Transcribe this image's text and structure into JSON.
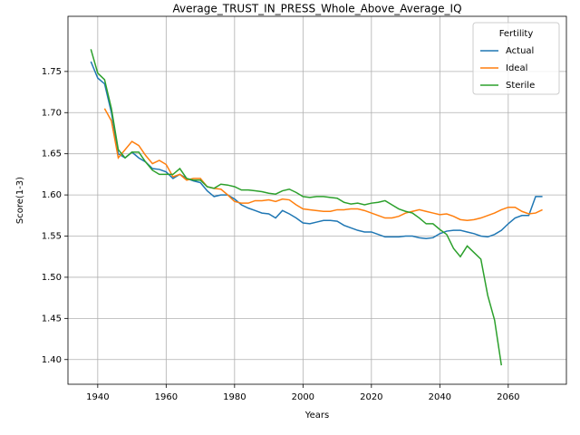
{
  "chart_data": {
    "type": "line",
    "title": "Average_TRUST_IN_PRESS_Whole_Above_Average_IQ",
    "xlabel": "Years",
    "ylabel": "Score(1-3)",
    "legend_title": "Fertility",
    "legend": "upper right",
    "grid": true,
    "xlim": [
      1931.3,
      2077
    ],
    "ylim": [
      1.37,
      1.817
    ],
    "xticks": [
      1940,
      1960,
      1980,
      2000,
      2020,
      2040,
      2060
    ],
    "yticks": [
      {
        "value": 1.4,
        "label": "1.40"
      },
      {
        "value": 1.45,
        "label": "1.45"
      },
      {
        "value": 1.5,
        "label": "1.50"
      },
      {
        "value": 1.55,
        "label": "1.55"
      },
      {
        "value": 1.6,
        "label": "1.60"
      },
      {
        "value": 1.65,
        "label": "1.65"
      },
      {
        "value": 1.7,
        "label": "1.70"
      },
      {
        "value": 1.75,
        "label": "1.75"
      }
    ],
    "x": [
      1938,
      1940,
      1942,
      1944,
      1946,
      1948,
      1950,
      1952,
      1954,
      1956,
      1958,
      1960,
      1962,
      1964,
      1966,
      1968,
      1970,
      1972,
      1974,
      1976,
      1978,
      1980,
      1982,
      1984,
      1986,
      1988,
      1990,
      1992,
      1994,
      1996,
      1998,
      2000,
      2002,
      2004,
      2006,
      2008,
      2010,
      2012,
      2014,
      2016,
      2018,
      2020,
      2022,
      2024,
      2026,
      2028,
      2030,
      2032,
      2034,
      2036,
      2038,
      2040,
      2042,
      2044,
      2046,
      2048,
      2050,
      2052,
      2054,
      2056,
      2058,
      2060,
      2062,
      2064,
      2066,
      2068,
      2070
    ],
    "series": [
      {
        "name": "Actual",
        "color": "#1f77b4",
        "values": [
          1.762,
          1.742,
          1.735,
          1.7,
          1.65,
          1.645,
          1.652,
          1.645,
          1.64,
          1.632,
          1.631,
          1.628,
          1.62,
          1.625,
          1.62,
          1.617,
          1.615,
          1.605,
          1.598,
          1.6,
          1.6,
          1.595,
          1.588,
          1.584,
          1.581,
          1.578,
          1.577,
          1.572,
          1.581,
          1.577,
          1.572,
          1.566,
          1.565,
          1.567,
          1.569,
          1.569,
          1.568,
          1.563,
          1.56,
          1.557,
          1.555,
          1.555,
          1.552,
          1.549,
          1.549,
          1.549,
          1.55,
          1.55,
          1.548,
          1.547,
          1.548,
          1.553,
          1.556,
          1.557,
          1.557,
          1.555,
          1.553,
          1.55,
          1.549,
          1.552,
          1.557,
          1.565,
          1.572,
          1.575,
          1.575,
          1.598,
          1.598
        ]
      },
      {
        "name": "Ideal",
        "color": "#ff7f0e",
        "values": [
          null,
          null,
          1.705,
          1.69,
          1.645,
          1.655,
          1.665,
          1.66,
          1.648,
          1.638,
          1.642,
          1.637,
          1.622,
          1.625,
          1.618,
          1.62,
          1.62,
          1.61,
          1.608,
          1.607,
          1.6,
          1.592,
          1.59,
          1.59,
          1.593,
          1.593,
          1.594,
          1.592,
          1.595,
          1.594,
          1.588,
          1.583,
          1.582,
          1.581,
          1.58,
          1.58,
          1.582,
          1.582,
          1.583,
          1.583,
          1.581,
          1.578,
          1.575,
          1.572,
          1.572,
          1.574,
          1.578,
          1.58,
          1.582,
          1.58,
          1.578,
          1.576,
          1.577,
          1.574,
          1.57,
          1.569,
          1.57,
          1.572,
          1.575,
          1.578,
          1.582,
          1.585,
          1.585,
          1.58,
          1.577,
          1.578,
          1.582
        ]
      },
      {
        "name": "Sterile",
        "color": "#2ca02c",
        "values": [
          1.777,
          1.748,
          1.74,
          1.705,
          1.655,
          1.645,
          1.652,
          1.652,
          1.64,
          1.63,
          1.625,
          1.625,
          1.625,
          1.632,
          1.62,
          1.618,
          1.618,
          1.61,
          1.608,
          1.613,
          1.612,
          1.61,
          1.606,
          1.606,
          1.605,
          1.604,
          1.602,
          1.601,
          1.605,
          1.607,
          1.603,
          1.598,
          1.597,
          1.598,
          1.598,
          1.597,
          1.596,
          1.591,
          1.589,
          1.59,
          1.588,
          1.59,
          1.591,
          1.593,
          1.588,
          1.583,
          1.58,
          1.578,
          1.572,
          1.565,
          1.565,
          1.558,
          1.552,
          1.535,
          1.525,
          1.538,
          1.53,
          1.522,
          1.478,
          1.448,
          1.393,
          null,
          null,
          null,
          null,
          null,
          null
        ]
      }
    ]
  }
}
